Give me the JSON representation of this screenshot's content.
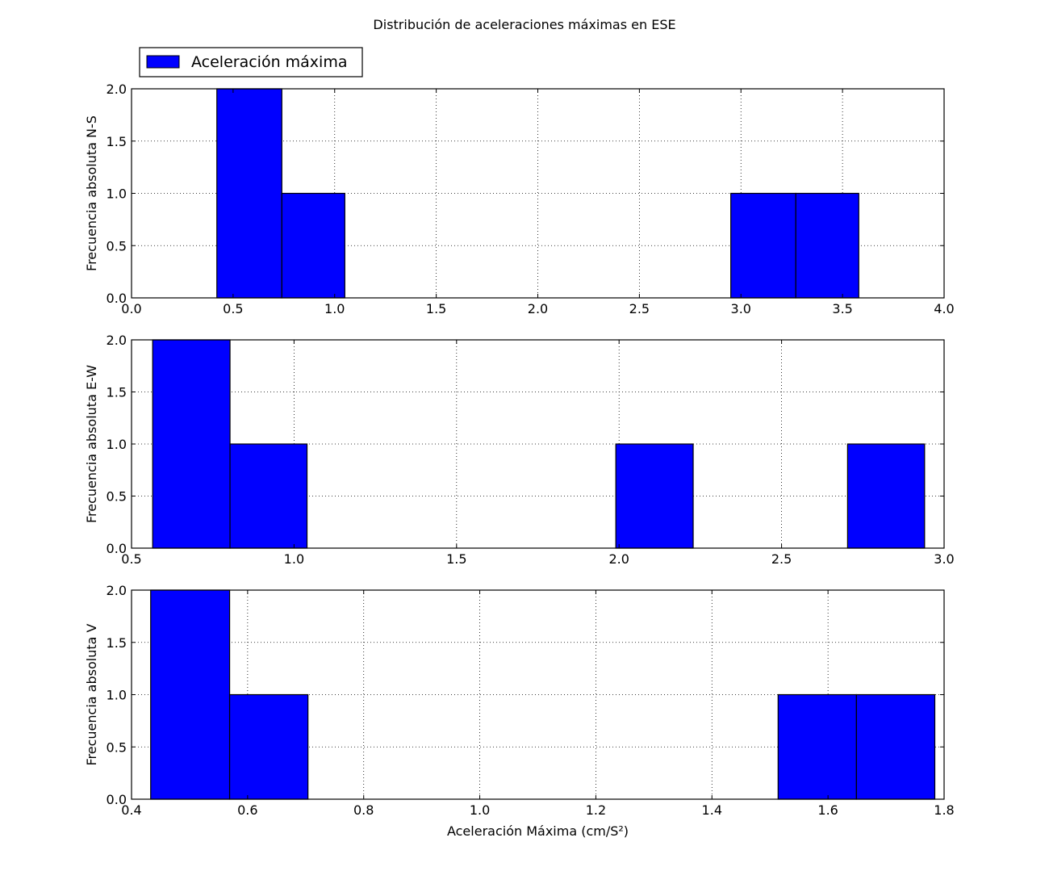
{
  "figure_title": "Distribución de aceleraciones máximas en ESE",
  "legend": {
    "label": "Aceleración máxima",
    "placement": "top-left",
    "color": "#0000ff"
  },
  "bar_color": "#0000ff",
  "chart_data": [
    {
      "type": "bar",
      "subtype": "histogram",
      "series_name": "Aceleración máxima",
      "ylabel": "Frecuencia absoluta N-S",
      "xlabel": "",
      "xlim": [
        0.0,
        4.0
      ],
      "ylim": [
        0.0,
        2.0
      ],
      "xticks": [
        0.0,
        0.5,
        1.0,
        1.5,
        2.0,
        2.5,
        3.0,
        3.5,
        4.0
      ],
      "xtick_labels": [
        "0.0",
        "0.5",
        "1.0",
        "1.5",
        "2.0",
        "2.5",
        "3.0",
        "3.5",
        "4.0"
      ],
      "yticks": [
        0.0,
        0.5,
        1.0,
        1.5,
        2.0
      ],
      "ytick_labels": [
        "0.0",
        "0.5",
        "1.0",
        "1.5",
        "2.0"
      ],
      "grid": true,
      "bins": [
        {
          "x0": 0.42,
          "x1": 0.74,
          "count": 2
        },
        {
          "x0": 0.74,
          "x1": 1.05,
          "count": 1
        },
        {
          "x0": 2.95,
          "x1": 3.27,
          "count": 1
        },
        {
          "x0": 3.27,
          "x1": 3.58,
          "count": 1
        }
      ]
    },
    {
      "type": "bar",
      "subtype": "histogram",
      "series_name": "Aceleración máxima",
      "ylabel": "Frecuencia absoluta E-W",
      "xlabel": "",
      "xlim": [
        0.5,
        3.0
      ],
      "ylim": [
        0.0,
        2.0
      ],
      "xticks": [
        0.5,
        1.0,
        1.5,
        2.0,
        2.5,
        3.0
      ],
      "xtick_labels": [
        "0.5",
        "1.0",
        "1.5",
        "2.0",
        "2.5",
        "3.0"
      ],
      "yticks": [
        0.0,
        0.5,
        1.0,
        1.5,
        2.0
      ],
      "ytick_labels": [
        "0.0",
        "0.5",
        "1.0",
        "1.5",
        "2.0"
      ],
      "grid": true,
      "bins": [
        {
          "x0": 0.565,
          "x1": 0.803,
          "count": 2
        },
        {
          "x0": 0.803,
          "x1": 1.04,
          "count": 1
        },
        {
          "x0": 1.99,
          "x1": 2.228,
          "count": 1
        },
        {
          "x0": 2.703,
          "x1": 2.94,
          "count": 1
        }
      ]
    },
    {
      "type": "bar",
      "subtype": "histogram",
      "series_name": "Aceleración máxima",
      "ylabel": "Frecuencia absoluta V",
      "xlabel": "Aceleración Máxima (cm/S²)",
      "xlim": [
        0.4,
        1.8
      ],
      "ylim": [
        0.0,
        2.0
      ],
      "xticks": [
        0.4,
        0.6,
        0.8,
        1.0,
        1.2,
        1.4,
        1.6,
        1.8
      ],
      "xtick_labels": [
        "0.4",
        "0.6",
        "0.8",
        "1.0",
        "1.2",
        "1.4",
        "1.6",
        "1.8"
      ],
      "yticks": [
        0.0,
        0.5,
        1.0,
        1.5,
        2.0
      ],
      "ytick_labels": [
        "0.0",
        "0.5",
        "1.0",
        "1.5",
        "2.0"
      ],
      "grid": true,
      "bins": [
        {
          "x0": 0.433,
          "x1": 0.569,
          "count": 2
        },
        {
          "x0": 0.569,
          "x1": 0.704,
          "count": 1
        },
        {
          "x0": 1.514,
          "x1": 1.649,
          "count": 1
        },
        {
          "x0": 1.649,
          "x1": 1.784,
          "count": 1
        }
      ]
    }
  ]
}
